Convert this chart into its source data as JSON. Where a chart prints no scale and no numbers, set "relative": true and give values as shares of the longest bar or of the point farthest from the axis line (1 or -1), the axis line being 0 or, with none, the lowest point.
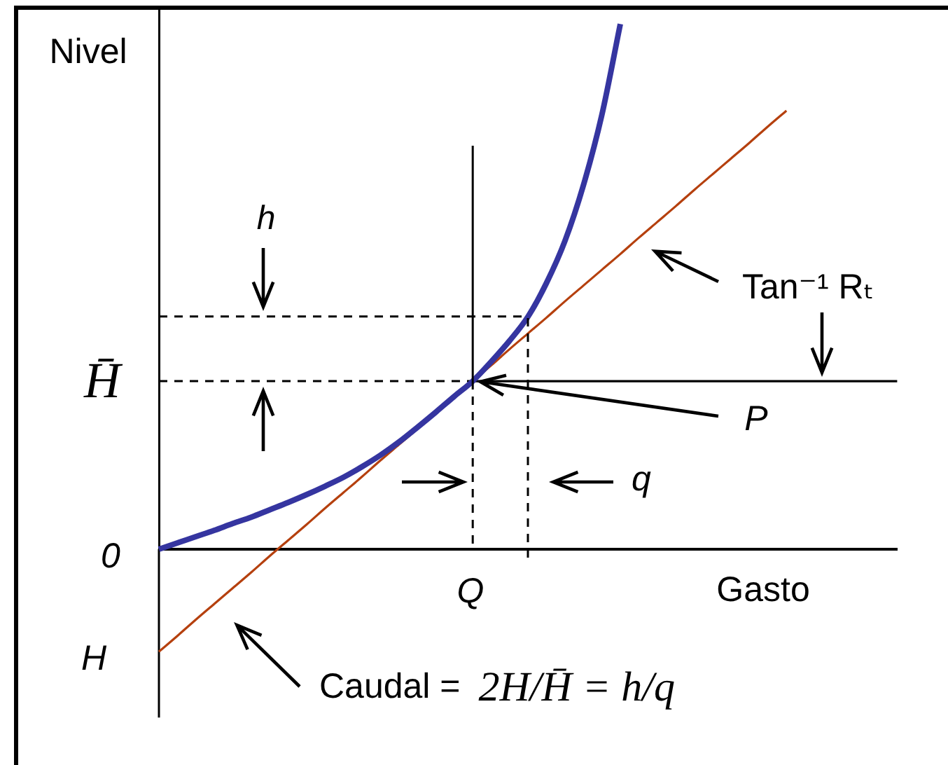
{
  "chart_data": {
    "type": "line",
    "relative": true,
    "xlabel": "Gasto",
    "ylabel": "Nivel",
    "categories": [
      null,
      null,
      null,
      null,
      null,
      null,
      null,
      null,
      null,
      null,
      null,
      null,
      null,
      null,
      null,
      null,
      null,
      null,
      null,
      null,
      null,
      null,
      null,
      null,
      null,
      null,
      null,
      null,
      null,
      null,
      null,
      null,
      null,
      null,
      null,
      null,
      null,
      null,
      null,
      null,
      null
    ],
    "series": [
      {
        "color": "#3535a0",
        "values": [
          0,
          0.012,
          0.024,
          0.036,
          0.049,
          0.061,
          0.075,
          0.089,
          0.104,
          0.12,
          0.137,
          0.157,
          0.179,
          0.204,
          0.232,
          0.261,
          0.291,
          0.32,
          0.357,
          0.397,
          0.443,
          0.507,
          0.587,
          0.693,
          0.827,
          1,
          null,
          null,
          null,
          null,
          null,
          null,
          null,
          null,
          null,
          null,
          null,
          null,
          null,
          null,
          null
        ]
      },
      {
        "color": "#b5400e",
        "values": [
          -0.195,
          -0.165,
          -0.134,
          -0.104,
          -0.074,
          -0.044,
          -0.013,
          0.017,
          0.047,
          0.078,
          0.108,
          0.138,
          0.169,
          0.199,
          0.229,
          0.259,
          0.29,
          0.32,
          0.35,
          0.381,
          0.411,
          0.441,
          0.472,
          0.502,
          0.532,
          0.562,
          0.593,
          0.623,
          0.653,
          0.684,
          0.714,
          0.744,
          0.774,
          0.805,
          0.835,
          null,
          null,
          null,
          null,
          null,
          null
        ]
      },
      {
        "color": "#000000",
        "line_style": "dashed",
        "values": [
          0.443,
          0.443,
          0.443,
          0.443,
          0.443,
          0.443,
          0.443,
          0.443,
          0.443,
          0.443,
          0.443,
          0.443,
          0.443,
          0.443,
          0.443,
          0.443,
          0.443,
          0.443,
          0.443,
          0.443,
          0.443,
          null,
          null,
          null,
          null,
          null,
          null,
          null,
          null,
          null,
          null,
          null,
          null,
          null,
          null,
          null,
          null,
          null,
          null,
          null,
          null
        ]
      },
      {
        "color": "#000000",
        "line_style": "dashed",
        "values": [
          0.32,
          0.32,
          0.32,
          0.32,
          0.32,
          0.32,
          0.32,
          0.32,
          0.32,
          0.32,
          0.32,
          0.32,
          0.32,
          0.32,
          0.32,
          0.32,
          0.32,
          0.32,
          null,
          null,
          null,
          null,
          null,
          null,
          null,
          null,
          null,
          null,
          null,
          null,
          null,
          null,
          null,
          null,
          null,
          null,
          null,
          null,
          null,
          null,
          null
        ]
      },
      {
        "color": "#000000",
        "values": [
          null,
          null,
          null,
          null,
          null,
          null,
          null,
          null,
          null,
          null,
          null,
          null,
          null,
          null,
          null,
          null,
          null,
          0.32,
          0.32,
          0.32,
          0.32,
          0.32,
          0.32,
          0.32,
          0.32,
          0.32,
          0.32,
          0.32,
          0.32,
          0.32,
          0.32,
          0.32,
          0.32,
          0.32,
          0.32,
          0.32,
          0.32,
          0.32,
          0.32,
          0.32,
          0.32
        ]
      }
    ],
    "annotations": [
      "h",
      "Tan⁻¹ Rₜ",
      "H̄",
      "P",
      "q",
      "0",
      "Q",
      "H",
      "Caudal = 2H/H̄ = h/q"
    ]
  }
}
